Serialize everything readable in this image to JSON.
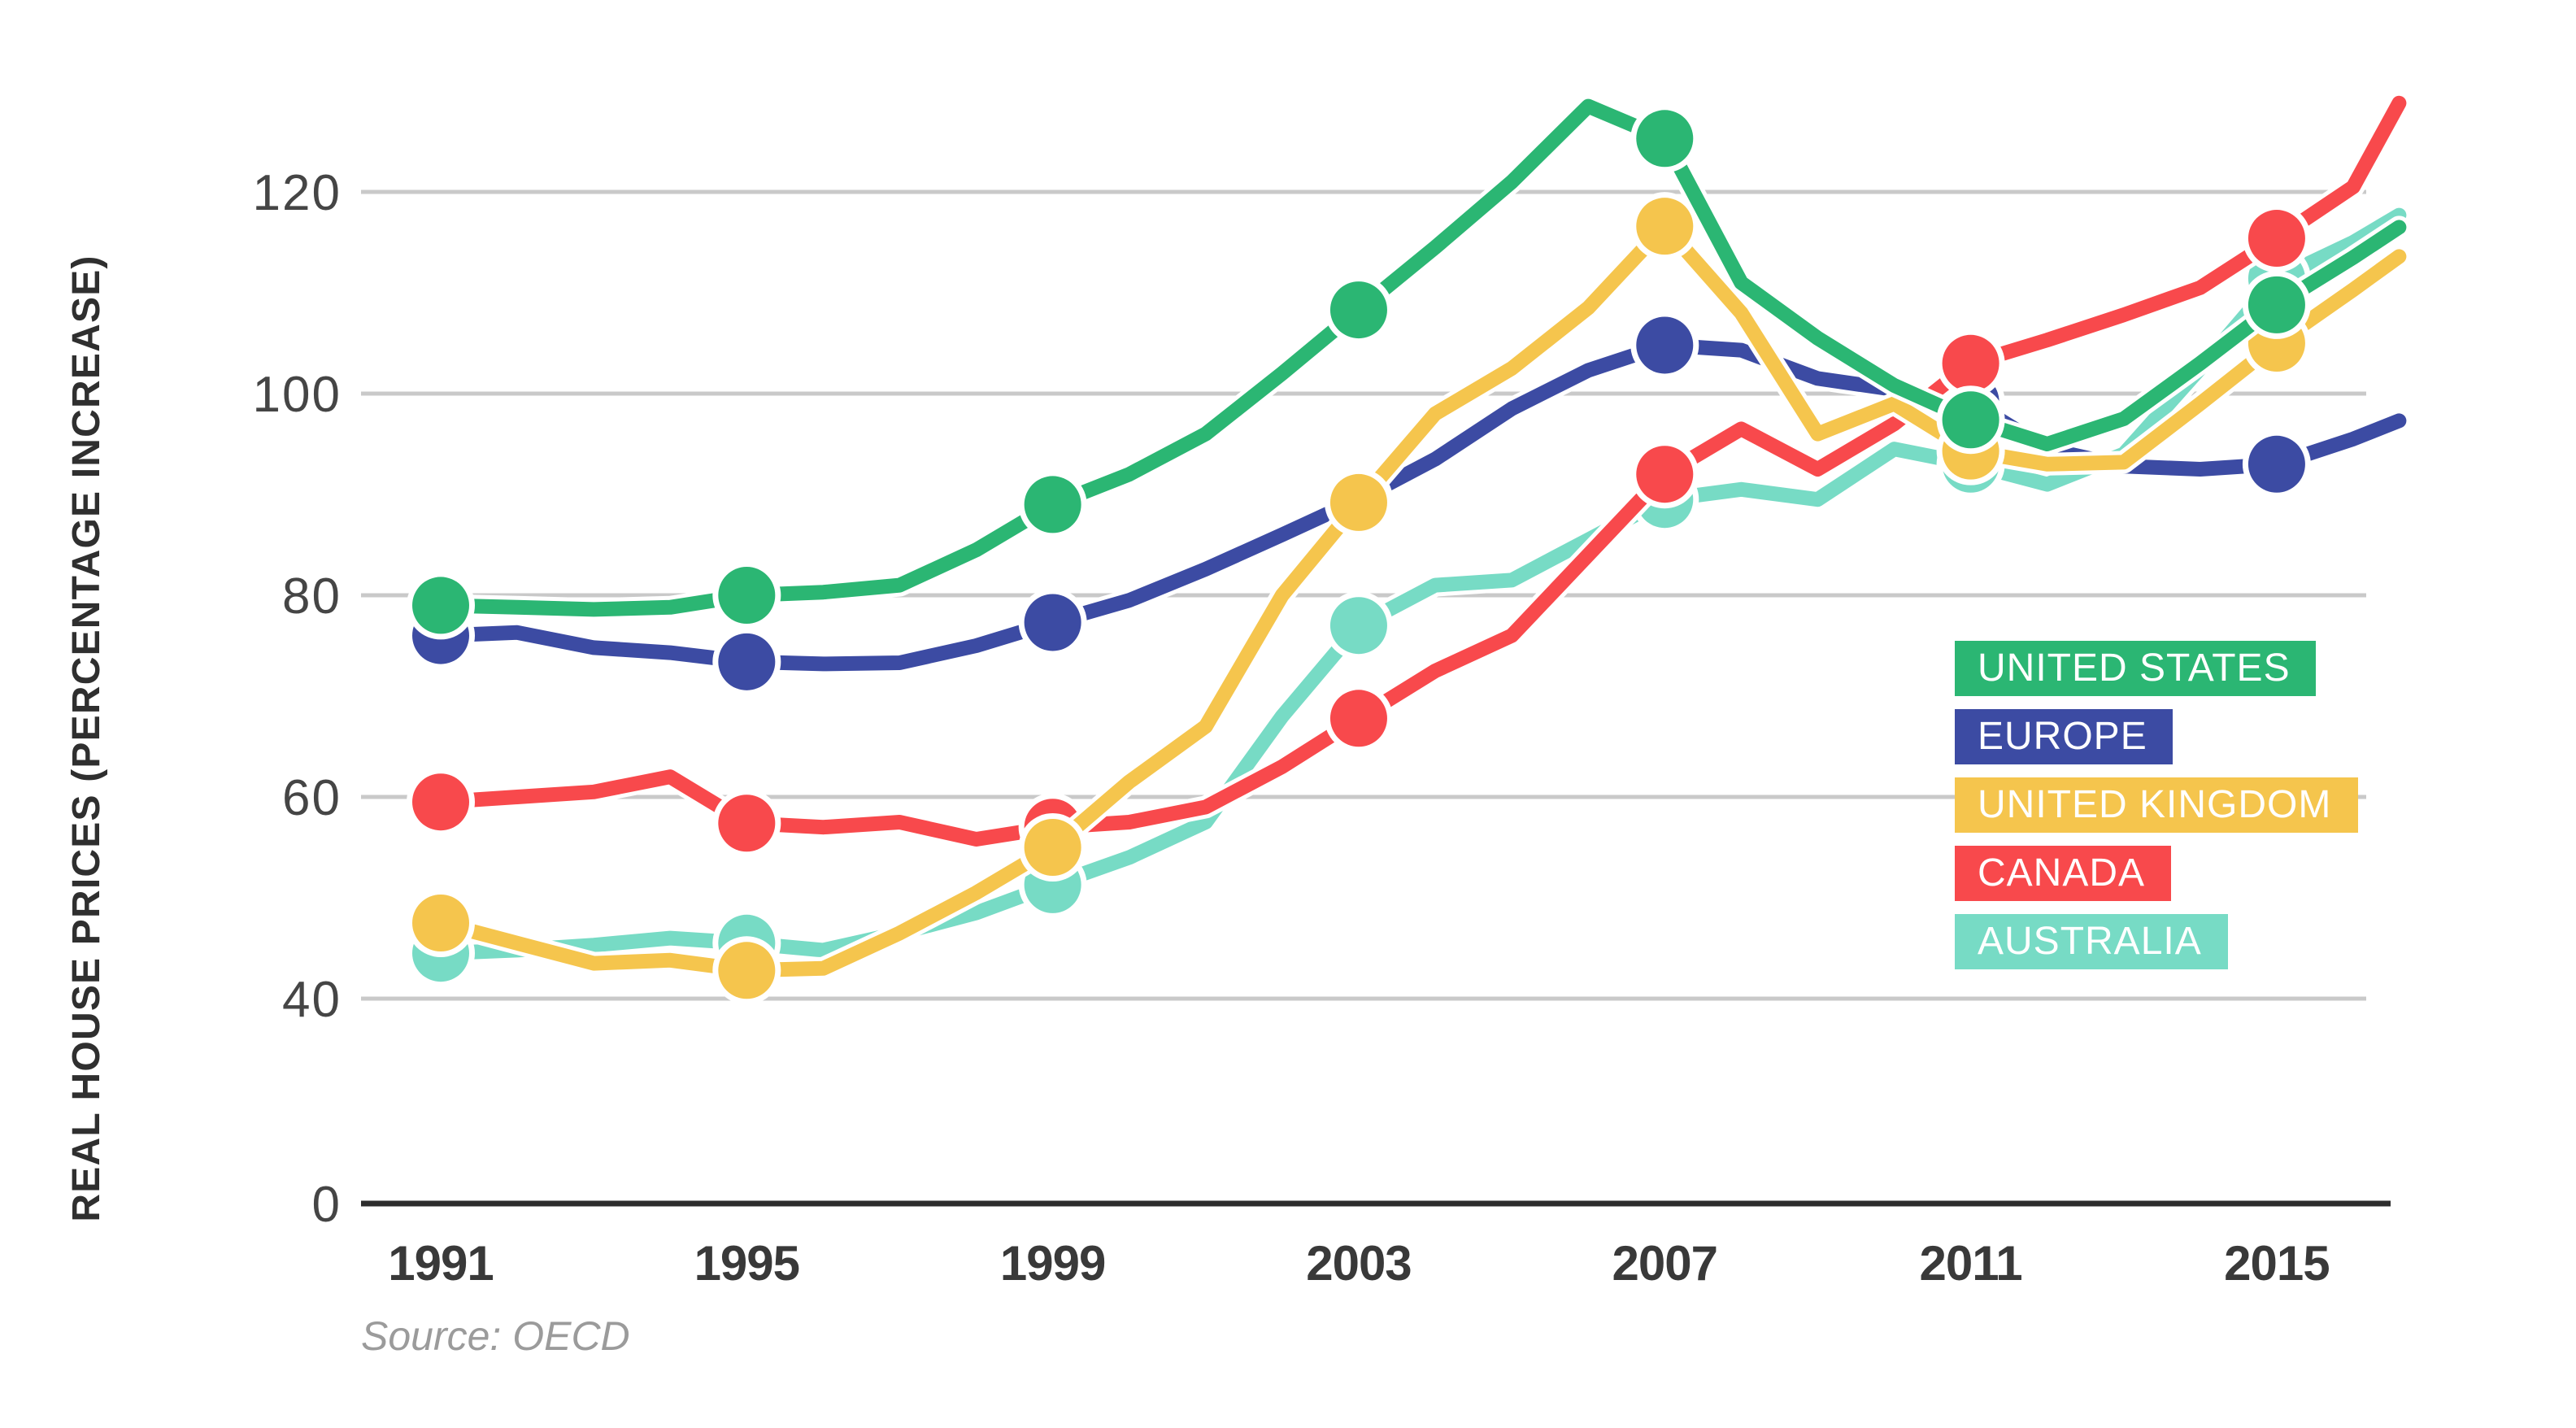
{
  "chart_data": {
    "type": "line",
    "title": "",
    "ylabel": "REAL HOUSE PRICES (PERCENTAGE INCREASE)",
    "xlabel": "",
    "source": "Source: OECD",
    "grid": "horizontal",
    "legend_position": "right-middle",
    "y_ticks": [
      0,
      40,
      60,
      80,
      100,
      120
    ],
    "ylim": [
      0,
      132
    ],
    "axis_note": "broken axis: 0 sits one step below 40",
    "x_tick_years": [
      1991,
      1995,
      1999,
      2003,
      2007,
      2011,
      2015
    ],
    "marker_years": [
      1991,
      1995,
      1999,
      2003,
      2007,
      2011,
      2015
    ],
    "x": [
      1991,
      1992,
      1993,
      1994,
      1995,
      1996,
      1997,
      1998,
      1999,
      2000,
      2001,
      2002,
      2003,
      2004,
      2005,
      2006,
      2007,
      2008,
      2009,
      2010,
      2011,
      2012,
      2013,
      2014,
      2015,
      2016,
      2016.6
    ],
    "z_order": [
      4,
      1,
      3,
      2,
      0
    ],
    "series": [
      {
        "name": "UNITED STATES",
        "color": "#2bb673",
        "values": [
          79,
          78.8,
          78.6,
          78.8,
          80,
          80.3,
          81,
          84.5,
          89,
          92,
          96,
          102,
          108.3,
          114.5,
          121,
          128.5,
          125.3,
          111,
          105.5,
          100.8,
          97.4,
          95,
          97.5,
          103,
          108.8,
          113.5,
          116.5
        ]
      },
      {
        "name": "EUROPE",
        "color": "#3c4ba3",
        "values": [
          76,
          76.3,
          74.8,
          74.3,
          73.4,
          73.2,
          73.3,
          75,
          77.3,
          79.5,
          82.6,
          86,
          89.5,
          93.5,
          98.5,
          102.3,
          104.8,
          104.3,
          101.5,
          100.4,
          99.2,
          94.5,
          92.8,
          92.5,
          93,
          95.5,
          97.3
        ]
      },
      {
        "name": "UNITED KINGDOM",
        "color": "#f5c54d",
        "values": [
          47.5,
          45.5,
          43.5,
          43.8,
          42.8,
          43,
          46.5,
          50.5,
          55,
          61.5,
          67,
          80,
          89.2,
          98,
          102.5,
          108.5,
          116.6,
          108,
          96,
          99,
          94.3,
          93,
          93.2,
          99,
          105,
          110.3,
          113.6
        ]
      },
      {
        "name": "CANADA",
        "color": "#f8494c",
        "values": [
          59.5,
          60,
          60.5,
          62,
          57.4,
          57,
          57.5,
          55.8,
          57,
          57.5,
          59,
          63,
          67.8,
          72.5,
          76,
          84,
          92,
          96.5,
          92.5,
          97,
          103,
          105.3,
          107.8,
          110.5,
          115.4,
          120.5,
          128.8
        ]
      },
      {
        "name": "AUSTRALIA",
        "color": "#77dbc5",
        "values": [
          44.5,
          44.8,
          45.3,
          46,
          45.5,
          44.8,
          46.5,
          48.5,
          51.3,
          54,
          57.5,
          68,
          77,
          81,
          81.5,
          85.5,
          89.5,
          90.5,
          89.5,
          94.5,
          93,
          91,
          94,
          102.5,
          111.4,
          115,
          117.7
        ]
      }
    ]
  },
  "legend": {
    "items": [
      {
        "label": "UNITED STATES",
        "color": "#2bb673"
      },
      {
        "label": "EUROPE",
        "color": "#3c4ba3"
      },
      {
        "label": "UNITED KINGDOM",
        "color": "#f5c54d"
      },
      {
        "label": "CANADA",
        "color": "#f8494c"
      },
      {
        "label": "AUSTRALIA",
        "color": "#77dbc5"
      }
    ]
  },
  "colors": {
    "background": "#ffffff",
    "gridline": "#c9c9c9",
    "axis_line": "#2d2d2d",
    "tick_label": "#454545",
    "x_label": "#393939",
    "source_text": "#9b9b9b",
    "line_casing": "#ffffff"
  }
}
